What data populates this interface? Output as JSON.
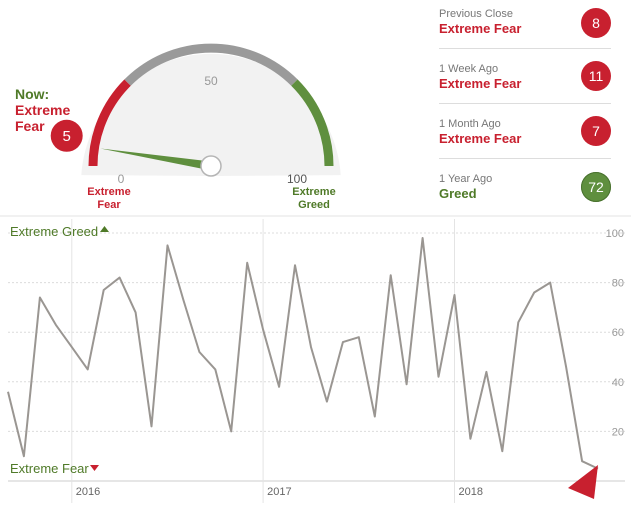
{
  "now": {
    "label": "Now:",
    "value_label": "Extreme Fear",
    "value": 5
  },
  "gauge": {
    "min_label": "0",
    "mid_label": "50",
    "max_label": "100",
    "left_caption": "Extreme Fear",
    "right_caption": "Extreme Greed",
    "range": [
      0,
      100
    ]
  },
  "history": [
    {
      "label": "Previous Close",
      "value_label": "Extreme Fear",
      "value": 8,
      "sentiment": "fear"
    },
    {
      "label": "1 Week Ago",
      "value_label": "Extreme Fear",
      "value": 11,
      "sentiment": "fear"
    },
    {
      "label": "1 Month Ago",
      "value_label": "Extreme Fear",
      "value": 7,
      "sentiment": "fear"
    },
    {
      "label": "1 Year Ago",
      "value_label": "Greed",
      "value": 72,
      "sentiment": "greed"
    }
  ],
  "colors": {
    "fear": "#c8202f",
    "greed": "#5f8f3e",
    "neutral": "#9a9a9a",
    "line": "#9a9692",
    "grid": "#dcdcdc"
  },
  "chart_data": {
    "type": "line",
    "top_label": "Extreme Greed",
    "bottom_label": "Extreme Fear",
    "ylim": [
      0,
      100
    ],
    "yticks": [
      "20",
      "40",
      "60",
      "80",
      "100"
    ],
    "xticks": [
      "2016",
      "2017",
      "2018"
    ],
    "xlim": [
      "2015-09",
      "2018-10"
    ],
    "series": [
      {
        "x": [
          "2015-09",
          "2015-10",
          "2015-11",
          "2015-12",
          "2016-01",
          "2016-02",
          "2016-03",
          "2016-04",
          "2016-05",
          "2016-06",
          "2016-07",
          "2016-08",
          "2016-09",
          "2016-10",
          "2016-11",
          "2016-12",
          "2017-01",
          "2017-02",
          "2017-03",
          "2017-04",
          "2017-05",
          "2017-06",
          "2017-07",
          "2017-08",
          "2017-09",
          "2017-10",
          "2017-11",
          "2017-12",
          "2018-01",
          "2018-02",
          "2018-03",
          "2018-04",
          "2018-05",
          "2018-06",
          "2018-07",
          "2018-08",
          "2018-09",
          "2018-10"
        ],
        "y": [
          36,
          10,
          74,
          63,
          54,
          45,
          77,
          82,
          68,
          22,
          95,
          73,
          52,
          45,
          20,
          88,
          61,
          38,
          87,
          54,
          32,
          56,
          58,
          26,
          83,
          39,
          98,
          42,
          75,
          17,
          44,
          12,
          64,
          76,
          80,
          46,
          8,
          5
        ]
      }
    ]
  }
}
